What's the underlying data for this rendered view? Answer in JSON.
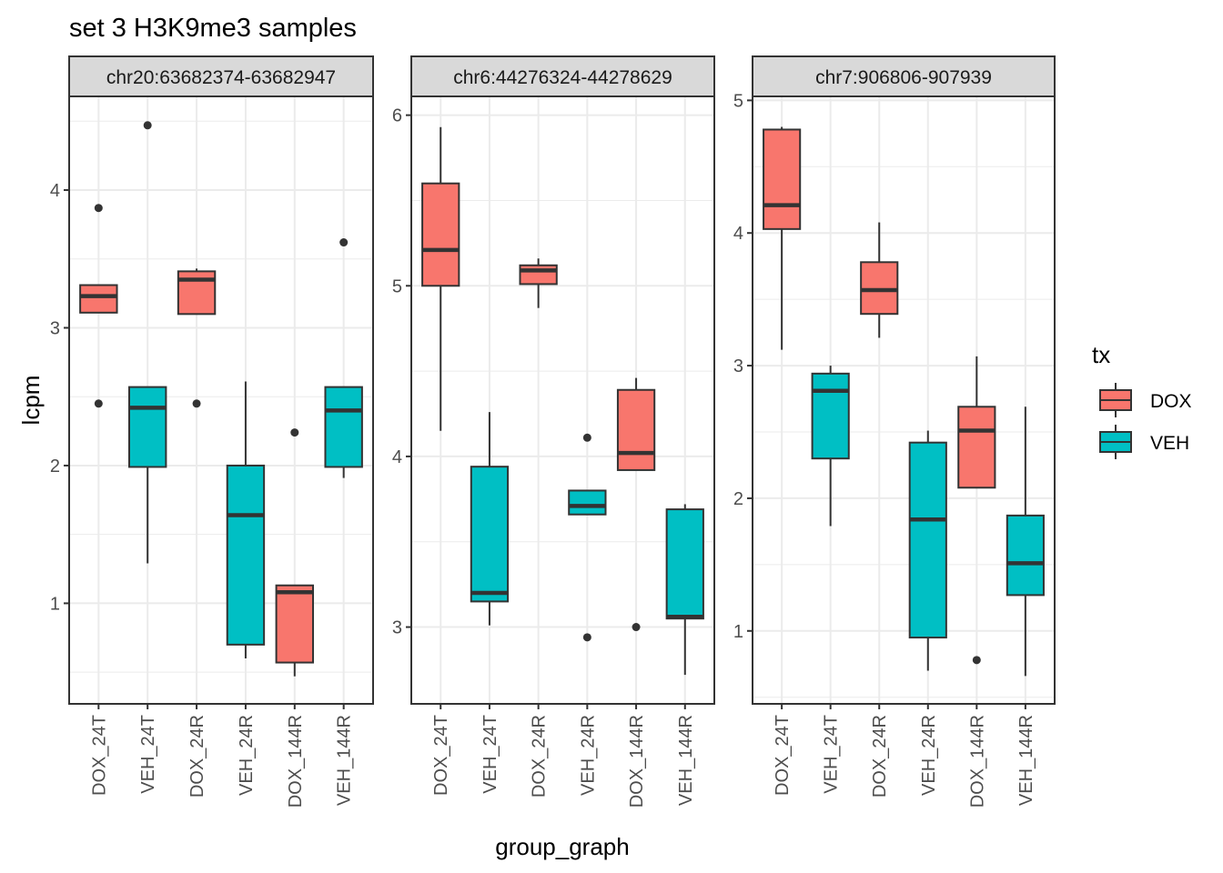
{
  "chart_data": {
    "type": "boxplot",
    "title": "set 3 H3K9me3 samples",
    "xlabel": "group_graph",
    "ylabel": "lcpm",
    "grid": true,
    "facet_scales": "free_y",
    "legend": {
      "title": "tx",
      "position": "right",
      "entries": [
        {
          "label": "DOX",
          "color": "#F8766D"
        },
        {
          "label": "VEH",
          "color": "#00BFC4"
        }
      ]
    },
    "categories": [
      "DOX_24T",
      "VEH_24T",
      "DOX_24R",
      "VEH_24R",
      "DOX_144R",
      "VEH_144R"
    ],
    "category_tx": [
      "DOX",
      "VEH",
      "DOX",
      "VEH",
      "DOX",
      "VEH"
    ],
    "panels": [
      {
        "strip": "chr20:63682374-63682947",
        "ylim": [
          0.27,
          4.68
        ],
        "yticks": [
          1,
          2,
          3,
          4
        ],
        "boxes": [
          {
            "category": "DOX_24T",
            "lower_whisker": 3.11,
            "q1": 3.11,
            "median": 3.23,
            "q3": 3.31,
            "upper_whisker": 3.31,
            "outliers": [
              3.87,
              2.45
            ]
          },
          {
            "category": "VEH_24T",
            "lower_whisker": 1.29,
            "q1": 1.99,
            "median": 2.42,
            "q3": 2.57,
            "upper_whisker": 2.57,
            "outliers": [
              4.47
            ]
          },
          {
            "category": "DOX_24R",
            "lower_whisker": 3.1,
            "q1": 3.1,
            "median": 3.35,
            "q3": 3.41,
            "upper_whisker": 3.43,
            "outliers": [
              2.45
            ]
          },
          {
            "category": "VEH_24R",
            "lower_whisker": 0.6,
            "q1": 0.7,
            "median": 1.64,
            "q3": 2.0,
            "upper_whisker": 2.61,
            "outliers": []
          },
          {
            "category": "DOX_144R",
            "lower_whisker": 0.47,
            "q1": 0.57,
            "median": 1.08,
            "q3": 1.13,
            "upper_whisker": 1.13,
            "outliers": [
              2.24
            ]
          },
          {
            "category": "VEH_144R",
            "lower_whisker": 1.91,
            "q1": 1.99,
            "median": 2.4,
            "q3": 2.57,
            "upper_whisker": 2.57,
            "outliers": [
              3.62
            ]
          }
        ]
      },
      {
        "strip": "chr6:44276324-44278629",
        "ylim": [
          2.55,
          6.11
        ],
        "yticks": [
          3,
          4,
          5,
          6
        ],
        "boxes": [
          {
            "category": "DOX_24T",
            "lower_whisker": 4.15,
            "q1": 5.0,
            "median": 5.21,
            "q3": 5.6,
            "upper_whisker": 5.93,
            "outliers": []
          },
          {
            "category": "VEH_24T",
            "lower_whisker": 3.01,
            "q1": 3.15,
            "median": 3.2,
            "q3": 3.94,
            "upper_whisker": 4.26,
            "outliers": []
          },
          {
            "category": "DOX_24R",
            "lower_whisker": 4.87,
            "q1": 5.01,
            "median": 5.09,
            "q3": 5.12,
            "upper_whisker": 5.16,
            "outliers": []
          },
          {
            "category": "VEH_24R",
            "lower_whisker": 3.66,
            "q1": 3.66,
            "median": 3.71,
            "q3": 3.8,
            "upper_whisker": 3.8,
            "outliers": [
              4.11,
              2.94
            ]
          },
          {
            "category": "DOX_144R",
            "lower_whisker": 3.92,
            "q1": 3.92,
            "median": 4.02,
            "q3": 4.39,
            "upper_whisker": 4.46,
            "outliers": [
              3.0
            ]
          },
          {
            "category": "VEH_144R",
            "lower_whisker": 2.72,
            "q1": 3.05,
            "median": 3.06,
            "q3": 3.69,
            "upper_whisker": 3.72,
            "outliers": []
          }
        ]
      },
      {
        "strip": "chr7:906806-907939",
        "ylim": [
          0.45,
          5.03
        ],
        "yticks": [
          1,
          2,
          3,
          4,
          5
        ],
        "boxes": [
          {
            "category": "DOX_24T",
            "lower_whisker": 3.12,
            "q1": 4.03,
            "median": 4.21,
            "q3": 4.78,
            "upper_whisker": 4.8,
            "outliers": []
          },
          {
            "category": "VEH_24T",
            "lower_whisker": 1.79,
            "q1": 2.3,
            "median": 2.81,
            "q3": 2.94,
            "upper_whisker": 3.0,
            "outliers": []
          },
          {
            "category": "DOX_24R",
            "lower_whisker": 3.21,
            "q1": 3.39,
            "median": 3.57,
            "q3": 3.78,
            "upper_whisker": 4.08,
            "outliers": []
          },
          {
            "category": "VEH_24R",
            "lower_whisker": 0.7,
            "q1": 0.95,
            "median": 1.84,
            "q3": 2.42,
            "upper_whisker": 2.51,
            "outliers": []
          },
          {
            "category": "DOX_144R",
            "lower_whisker": 2.08,
            "q1": 2.08,
            "median": 2.51,
            "q3": 2.69,
            "upper_whisker": 3.07,
            "outliers": [
              0.78
            ]
          },
          {
            "category": "VEH_144R",
            "lower_whisker": 0.66,
            "q1": 1.27,
            "median": 1.51,
            "q3": 1.87,
            "upper_whisker": 2.69,
            "outliers": []
          }
        ]
      }
    ]
  }
}
